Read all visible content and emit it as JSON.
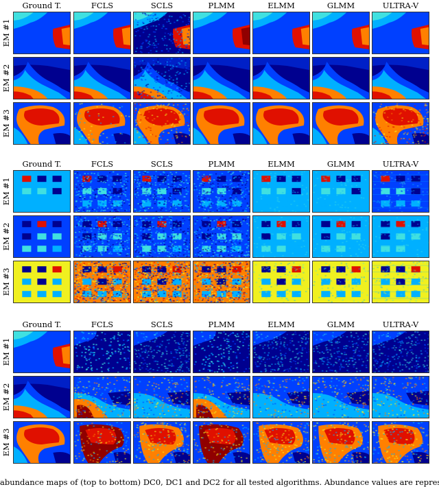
{
  "figure": {
    "columns": [
      "Ground T.",
      "FCLS",
      "SCLS",
      "PLMM",
      "ELMM",
      "GLMM",
      "ULTRA-V"
    ],
    "rows": [
      "EM #1",
      "EM #2",
      "EM #3"
    ],
    "panels": [
      {
        "id": "panel-1",
        "scene": "real"
      },
      {
        "id": "panel-2",
        "scene": "synthetic"
      },
      {
        "id": "panel-3",
        "scene": "real"
      }
    ],
    "caption": "abundance maps of (top to bottom) DC0, DC1 and DC2 for all tested algorithms. Abundance values are represented"
  },
  "colors": {
    "dark_blue": "#00008f",
    "blue": "#0040ff",
    "light_blue": "#00b0ff",
    "cyan": "#40e0e0",
    "yellow": "#f0f020",
    "orange": "#ff8000",
    "red": "#e01000",
    "dark_red": "#900000"
  }
}
